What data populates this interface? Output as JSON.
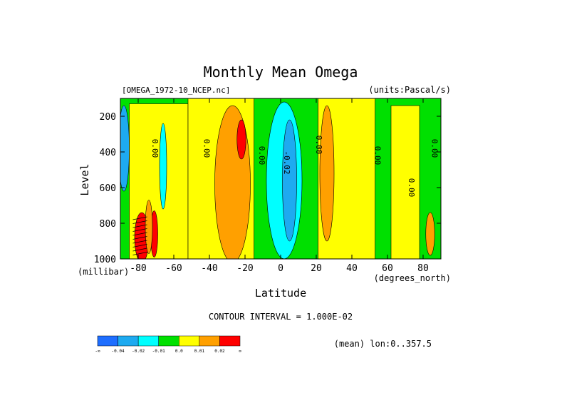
{
  "chart_data": {
    "type": "heatmap",
    "title": "Monthly Mean Omega",
    "source_label": "[OMEGA_1972-10_NCEP.nc]",
    "units_label": "(units:Pascal/s)",
    "xlabel": "Latitude",
    "x_unit_label": "(degrees_north)",
    "ylabel": "Level",
    "y_unit_label": "(millibar)",
    "xlim": [
      -90,
      90
    ],
    "ylim": [
      1000,
      100
    ],
    "x_ticks": [
      -80,
      -60,
      -40,
      -20,
      0,
      20,
      40,
      60,
      80
    ],
    "x_tick_labels": [
      "-80",
      "-60",
      "-40",
      "-20",
      "0",
      "20",
      "40",
      "60",
      "80"
    ],
    "y_ticks": [
      200,
      400,
      600,
      800,
      1000
    ],
    "y_tick_labels": [
      "200",
      "400",
      "600",
      "800",
      "1000"
    ],
    "footer_interval": "CONTOUR INTERVAL = 1.000E-02",
    "footer_mean": "(mean) lon:0..357.5",
    "contour_labels": [
      {
        "text": "0.00",
        "lat": -72,
        "lev": 380
      },
      {
        "text": "0.00",
        "lat": -43,
        "lev": 380
      },
      {
        "text": "0.00",
        "lat": -12,
        "lev": 420
      },
      {
        "text": "-0.02",
        "lat": 2,
        "lev": 460
      },
      {
        "text": "0.00",
        "lat": 20,
        "lev": 360
      },
      {
        "text": "0.00",
        "lat": 53,
        "lev": 420
      },
      {
        "text": "0.00",
        "lat": 72,
        "lev": 600
      },
      {
        "text": "0.00",
        "lat": 85,
        "lev": 380
      }
    ],
    "colorbar": {
      "bins": [
        {
          "color": "#1e6eff",
          "value_range": [
            "-inf",
            -0.04
          ]
        },
        {
          "color": "#1eaaf0",
          "value_range": [
            -0.04,
            -0.02
          ]
        },
        {
          "color": "#00ffff",
          "value_range": [
            -0.02,
            -0.01
          ]
        },
        {
          "color": "#00e000",
          "value_range": [
            -0.01,
            0.0
          ]
        },
        {
          "color": "#ffff00",
          "value_range": [
            0.0,
            0.01
          ]
        },
        {
          "color": "#ffa000",
          "value_range": [
            0.01,
            0.02
          ]
        },
        {
          "color": "#ff0000",
          "value_range": [
            0.02,
            "inf"
          ]
        }
      ],
      "labels": [
        "-∞",
        "-0.04",
        "-0.02",
        "-0.01",
        "0.0",
        "0.01",
        "0.02",
        "∞"
      ]
    },
    "regions": [
      {
        "level": "0.0",
        "color": "#ffff00",
        "kind": "band",
        "lat_range": [
          -85,
          -52
        ],
        "lev_range": [
          130,
          1000
        ]
      },
      {
        "level": "0.0",
        "color": "#ffff00",
        "kind": "band",
        "lat_range": [
          -52,
          0
        ],
        "lev_range": [
          100,
          1000
        ]
      },
      {
        "level": "0.01",
        "color": "#ffa000",
        "kind": "blob",
        "lat": -27,
        "lev": 580,
        "half_width_deg": 10,
        "half_depth_mb": 440
      },
      {
        "level": "0.02",
        "color": "#ff0000",
        "kind": "blob",
        "lat": -22,
        "lev": 330,
        "half_width_deg": 2.5,
        "half_depth_mb": 110
      },
      {
        "level": "-0.01",
        "color": "#00e000",
        "kind": "band",
        "lat_range": [
          -15,
          21
        ],
        "lev_range": [
          100,
          1000
        ]
      },
      {
        "level": "-0.02",
        "color": "#00ffff",
        "kind": "blob",
        "lat": 2,
        "lev": 560,
        "half_width_deg": 10,
        "half_depth_mb": 440
      },
      {
        "level": "-0.04",
        "color": "#1eaaf0",
        "kind": "blob",
        "lat": 5,
        "lev": 560,
        "half_width_deg": 4,
        "half_depth_mb": 340
      },
      {
        "level": "0.0",
        "color": "#ffff00",
        "kind": "band",
        "lat_range": [
          21,
          53
        ],
        "lev_range": [
          100,
          1000
        ]
      },
      {
        "level": "0.01",
        "color": "#ffa000",
        "kind": "blob",
        "lat": 26,
        "lev": 520,
        "half_width_deg": 4,
        "half_depth_mb": 380
      },
      {
        "level": "0.0",
        "color": "#ffff00",
        "kind": "band",
        "lat_range": [
          62,
          78
        ],
        "lev_range": [
          140,
          1000
        ]
      },
      {
        "level": "0.01",
        "color": "#ffa000",
        "kind": "blob",
        "lat": 84,
        "lev": 860,
        "half_width_deg": 2.5,
        "half_depth_mb": 120
      },
      {
        "level": "-0.02",
        "color": "#00ffff",
        "kind": "blob",
        "lat": -66,
        "lev": 480,
        "half_width_deg": 2,
        "half_depth_mb": 240
      },
      {
        "level": "-0.04",
        "color": "#1eaaf0",
        "kind": "blob",
        "lat": -88,
        "lev": 380,
        "half_width_deg": 3,
        "half_depth_mb": 240
      },
      {
        "level": "0.02",
        "color": "#ff0000",
        "kind": "blob",
        "lat": -78,
        "lev": 880,
        "half_width_deg": 4,
        "half_depth_mb": 140
      },
      {
        "level": "0.02",
        "color": "#ff0000",
        "kind": "blob",
        "lat": -71,
        "lev": 860,
        "half_width_deg": 2,
        "half_depth_mb": 130
      },
      {
        "level": "0.01",
        "color": "#ffa000",
        "kind": "blob",
        "lat": -74,
        "lev": 820,
        "half_width_deg": 2,
        "half_depth_mb": 150
      }
    ]
  }
}
